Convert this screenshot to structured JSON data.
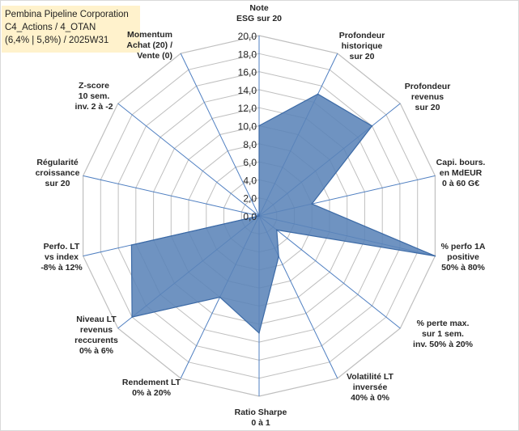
{
  "title_lines": [
    "Pembina Pipeline Corporation",
    "C4_Actions / 4_OTAN",
    "(6,4% | 5,8%) / 2025W31"
  ],
  "chart_data": {
    "type": "radar",
    "r_ticks": [
      "0,0",
      "2,0",
      "4,0",
      "6,0",
      "8,0",
      "10,0",
      "12,0",
      "14,0",
      "16,0",
      "18,0",
      "20,0"
    ],
    "rlim": [
      0,
      20
    ],
    "grid": true,
    "fill_color": "#5b84b8",
    "line_color": "#3c6aa6",
    "grid_color": "#bfbfbf",
    "spoke_color": "#4f7fc1",
    "categories": [
      [
        "Note",
        "ESG sur 20"
      ],
      [
        "Profondeur",
        "historique",
        "sur 20"
      ],
      [
        "Profondeur",
        "revenus",
        "sur 20"
      ],
      [
        "Capi. bours.",
        "en MdEUR",
        "0 à 60 G€"
      ],
      [
        "% perfo 1A",
        "positive",
        "50% à 80%"
      ],
      [
        "% perte max.",
        "sur 1 sem.",
        "inv. 50% à 20%"
      ],
      [
        "Volatilité LT",
        "inversée",
        "40% à 0%"
      ],
      [
        "Ratio Sharpe",
        "0 à 1"
      ],
      [
        "Rendement LT",
        "0% à 20%"
      ],
      [
        "Niveau LT",
        "revenus",
        "reccurents",
        "0% à 6%"
      ],
      [
        "Perfo. LT",
        "vs index",
        "-8% à 12%"
      ],
      [
        "Régularité",
        "croissance",
        "sur 20"
      ],
      [
        "Z-score",
        "10 sem.",
        "inv. 2 à -2"
      ],
      [
        "Momentum",
        "Achat (20) /",
        "Vente (0)"
      ]
    ],
    "values": [
      10.0,
      15.0,
      16.0,
      6.0,
      20.0,
      2.5,
      5.0,
      13.0,
      10.0,
      18.0,
      14.5,
      0.0,
      0.0,
      0.0
    ]
  }
}
